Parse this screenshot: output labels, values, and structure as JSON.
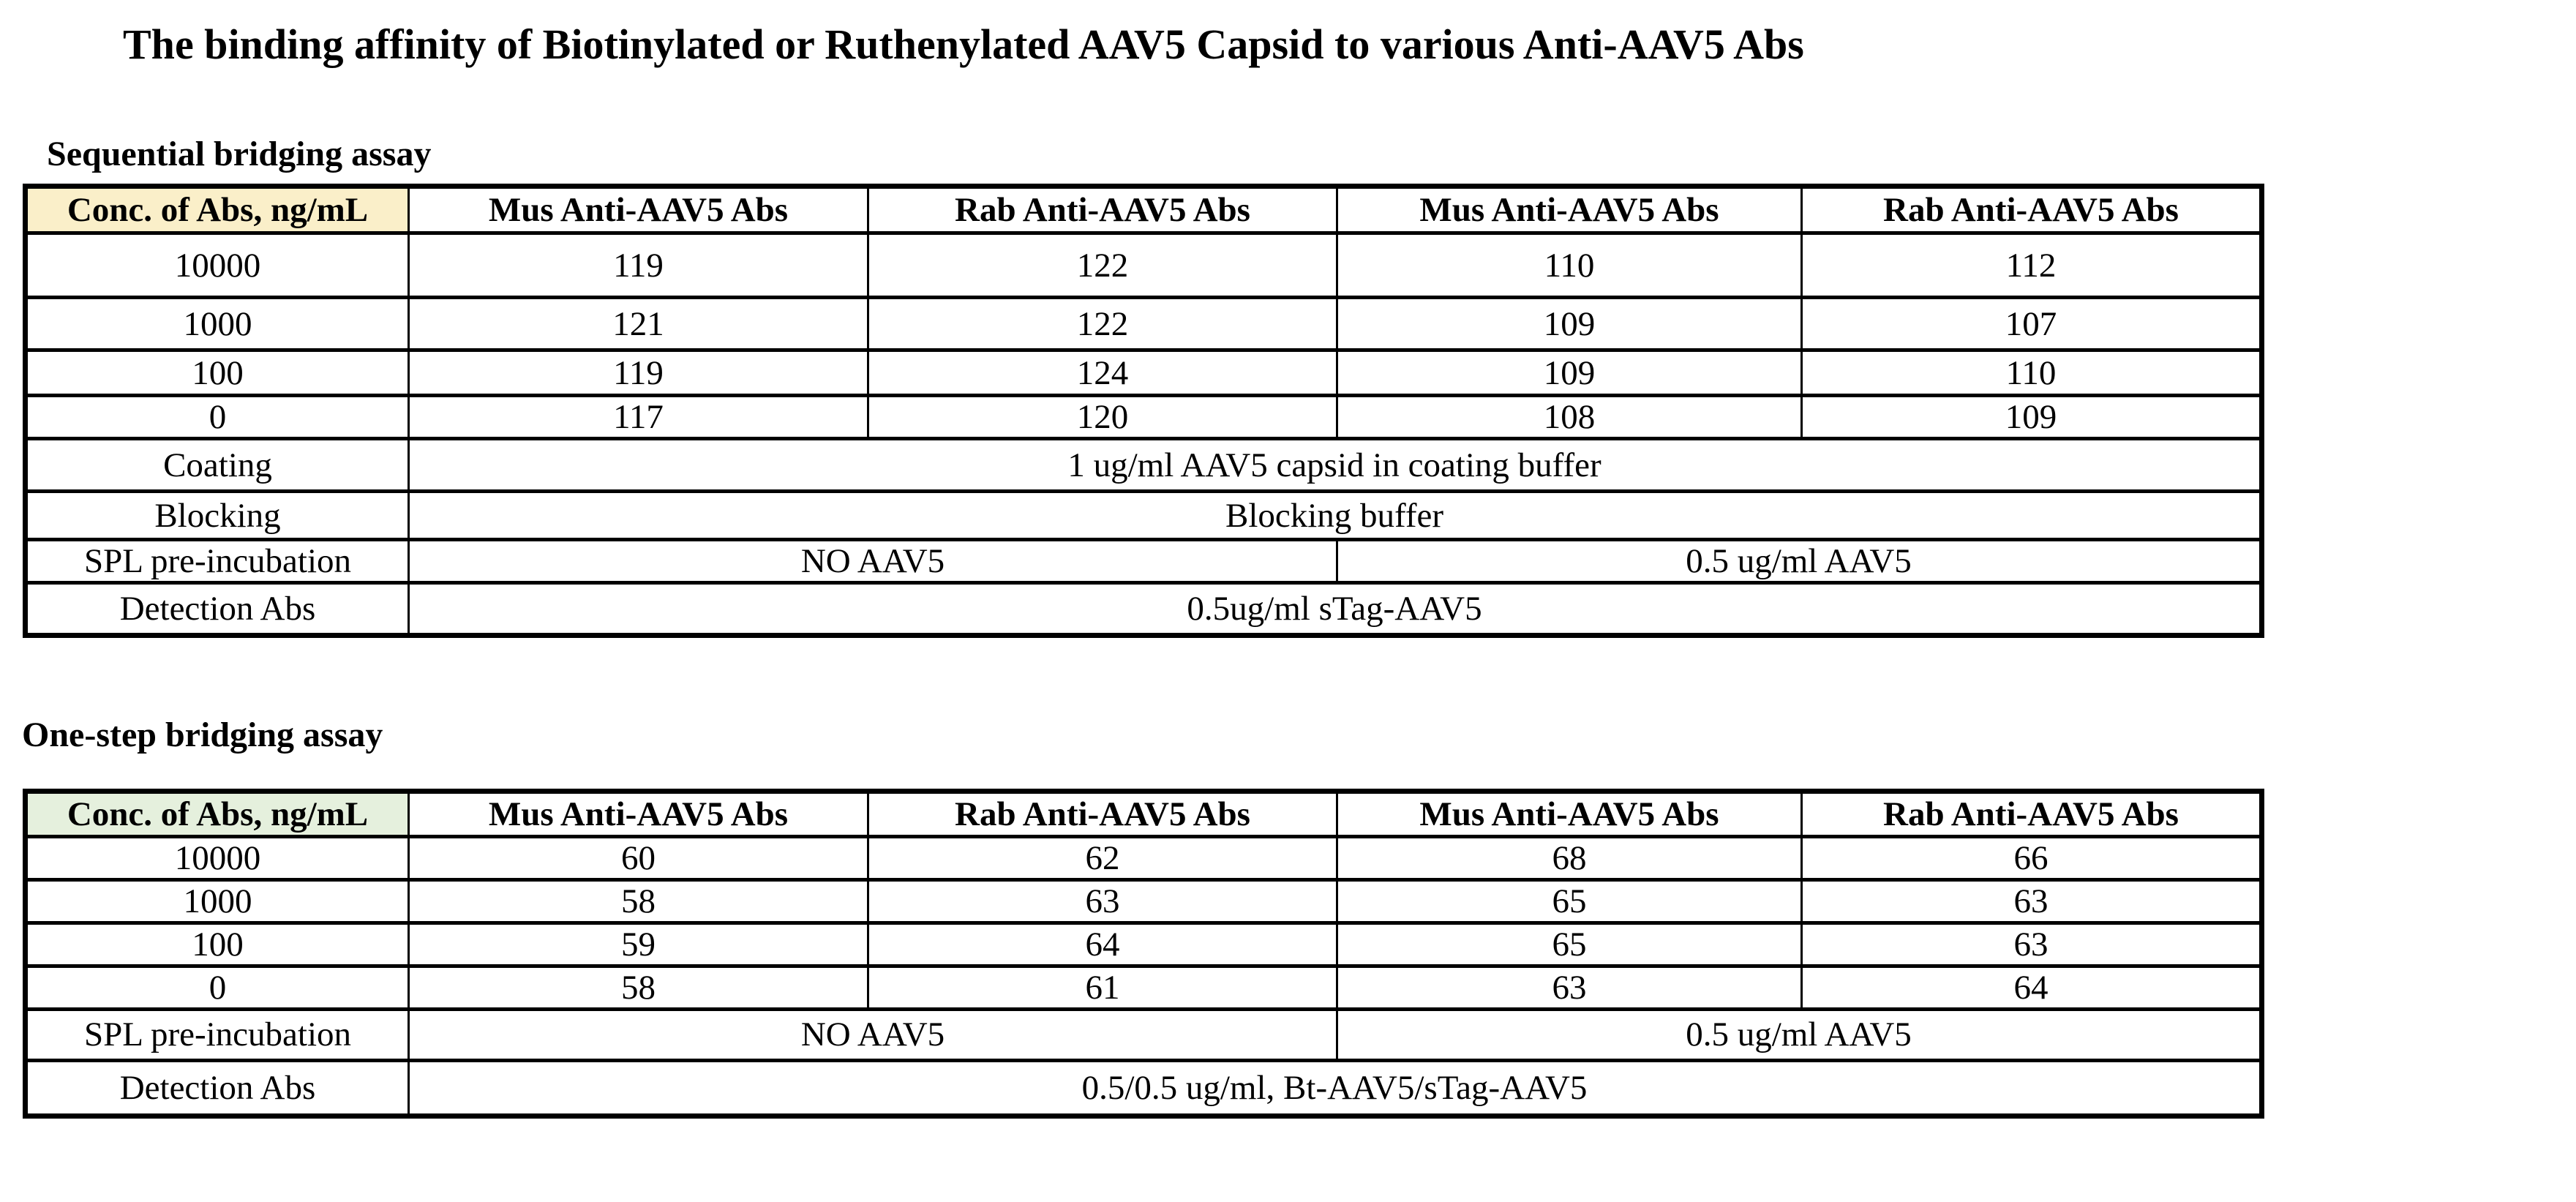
{
  "page_title": "The binding affinity of Biotinylated or Ruthenylated AAV5 Capsid to various Anti-AAV5 Abs",
  "colors": {
    "page_bg": "#FFFFFF",
    "text": "#000000",
    "border": "#000000",
    "sequential_corner_bg": "#FAEFC9",
    "onestep_corner_bg": "#E5F0DD"
  },
  "tables": [
    {
      "heading": "Sequential bridging assay",
      "corner_header": "Conc. of Abs, ng/mL",
      "column_headers": [
        "Mus Anti-AAV5 Abs",
        "Rab Anti-AAV5 Abs",
        "Mus Anti-AAV5 Abs",
        "Rab Anti-AAV5 Abs"
      ],
      "rows": [
        {
          "conc": "10000",
          "values": [
            "119",
            "122",
            "110",
            "112"
          ]
        },
        {
          "conc": "1000",
          "values": [
            "121",
            "122",
            "109",
            "107"
          ]
        },
        {
          "conc": "100",
          "values": [
            "119",
            "124",
            "109",
            "110"
          ]
        },
        {
          "conc": "0",
          "values": [
            "117",
            "120",
            "108",
            "109"
          ]
        }
      ],
      "coating": {
        "label": "Coating",
        "value": "1 ug/ml AAV5 capsid in coating buffer"
      },
      "blocking": {
        "label": "Blocking",
        "value": "Blocking buffer"
      },
      "spl": {
        "label": "SPL pre-incubation",
        "no_aav5": "NO AAV5",
        "with_aav5": "0.5 ug/ml AAV5"
      },
      "detection": {
        "label": "Detection Abs",
        "value": "0.5ug/ml sTag-AAV5"
      }
    },
    {
      "heading": "One-step bridging assay",
      "corner_header": "Conc. of Abs, ng/mL",
      "column_headers": [
        "Mus Anti-AAV5 Abs",
        "Rab Anti-AAV5 Abs",
        "Mus Anti-AAV5 Abs",
        "Rab Anti-AAV5 Abs"
      ],
      "rows": [
        {
          "conc": "10000",
          "values": [
            "60",
            "62",
            "68",
            "66"
          ]
        },
        {
          "conc": "1000",
          "values": [
            "58",
            "63",
            "65",
            "63"
          ]
        },
        {
          "conc": "100",
          "values": [
            "59",
            "64",
            "65",
            "63"
          ]
        },
        {
          "conc": "0",
          "values": [
            "58",
            "61",
            "63",
            "64"
          ]
        }
      ],
      "spl": {
        "label": "SPL pre-incubation",
        "no_aav5": "NO AAV5",
        "with_aav5": "0.5 ug/ml AAV5"
      },
      "detection": {
        "label": "Detection Abs",
        "value": "0.5/0.5 ug/ml, Bt-AAV5/sTag-AAV5"
      }
    }
  ]
}
